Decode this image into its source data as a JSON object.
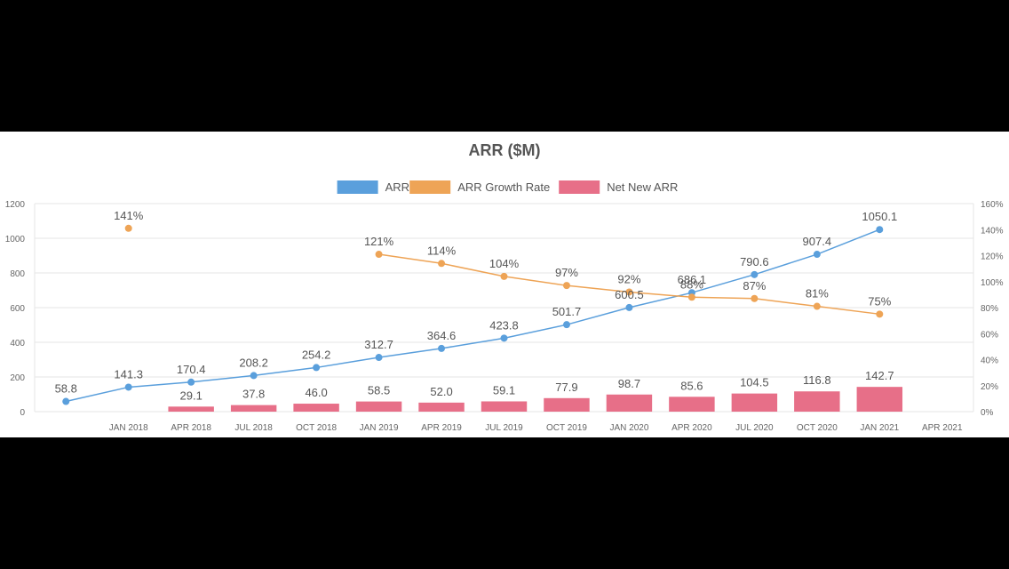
{
  "chart_data": {
    "type": "bar",
    "title": "ARR ($M)",
    "categories": [
      "",
      "JAN 2018",
      "APR 2018",
      "JUL 2018",
      "OCT 2018",
      "JAN 2019",
      "APR 2019",
      "JUL 2019",
      "OCT 2019",
      "JAN 2020",
      "APR 2020",
      "JUL 2020",
      "OCT 2020",
      "JAN 2021",
      "APR 2021"
    ],
    "legend_position": "top",
    "grid": true,
    "y_left": {
      "ticks": [
        "0",
        "200",
        "400",
        "600",
        "800",
        "1000",
        "1200"
      ],
      "min": 0,
      "max": 1200
    },
    "y_right": {
      "ticks": [
        "0%",
        "20%",
        "40%",
        "60%",
        "80%",
        "100%",
        "120%",
        "140%",
        "160%"
      ],
      "min": 0,
      "max": 160
    },
    "series": [
      {
        "name": "ARR",
        "kind": "line",
        "axis": "left",
        "color": "#5a9fdc",
        "values": [
          58.8,
          141.3,
          170.4,
          208.2,
          254.2,
          312.7,
          364.6,
          423.8,
          501.7,
          600.5,
          686.1,
          790.6,
          907.4,
          1050.1,
          null
        ],
        "labels": [
          "58.8",
          "141.3",
          "170.4",
          "208.2",
          "254.2",
          "312.7",
          "364.6",
          "423.8",
          "501.7",
          "600.5",
          "686.1",
          "790.6",
          "907.4",
          "1050.1",
          null
        ]
      },
      {
        "name": "ARR Growth Rate",
        "kind": "line",
        "axis": "right",
        "color": "#eea456",
        "values": [
          null,
          141,
          null,
          null,
          null,
          121,
          114,
          104,
          97,
          92,
          88,
          87,
          81,
          75,
          null
        ],
        "labels": [
          null,
          "141%",
          null,
          null,
          null,
          "121%",
          "114%",
          "104%",
          "97%",
          "92%",
          "88%",
          "87%",
          "81%",
          "75%",
          null
        ]
      },
      {
        "name": "Net New ARR",
        "kind": "bar",
        "axis": "left",
        "color": "#e76f88",
        "values": [
          null,
          null,
          29.1,
          37.8,
          46.0,
          58.5,
          52.0,
          59.1,
          77.9,
          98.7,
          85.6,
          104.5,
          116.8,
          142.7,
          null
        ],
        "labels": [
          null,
          null,
          "29.1",
          "37.8",
          "46.0",
          "58.5",
          "52.0",
          "59.1",
          "77.9",
          "98.7",
          "85.6",
          "104.5",
          "116.8",
          "142.7",
          null
        ]
      }
    ]
  }
}
